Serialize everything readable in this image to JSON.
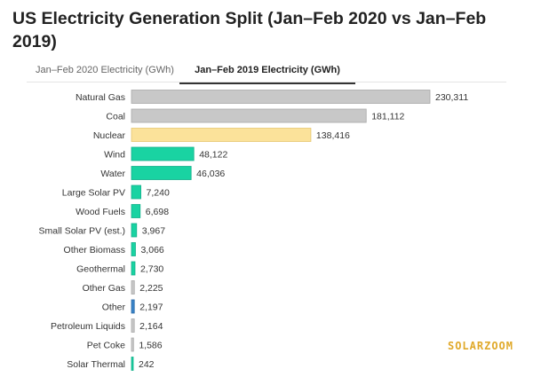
{
  "title": "US Electricity Generation Split (Jan–Feb 2020 vs Jan–Feb 2019)",
  "tabs": [
    {
      "label": "Jan–Feb 2020 Electricity (GWh)",
      "active": false
    },
    {
      "label": "Jan–Feb 2019 Electricity (GWh)",
      "active": true
    }
  ],
  "watermark": "SOLARZOOM",
  "chart_data": {
    "type": "bar",
    "orientation": "horizontal",
    "title": "US Electricity Generation Split (Jan–Feb 2020 vs Jan–Feb 2019)",
    "xlabel": "",
    "ylabel": "",
    "xlim": [
      0,
      230311
    ],
    "grid": false,
    "categories": [
      "Natural Gas",
      "Coal",
      "Nuclear",
      "Wind",
      "Water",
      "Large Solar PV",
      "Wood Fuels",
      "Small Solar PV (est.)",
      "Other Biomass",
      "Geothermal",
      "Other Gas",
      "Other",
      "Petroleum Liquids",
      "Pet Coke",
      "Solar Thermal"
    ],
    "values": [
      230311,
      181112,
      138416,
      48122,
      46036,
      7240,
      6698,
      3967,
      3066,
      2730,
      2225,
      2197,
      2164,
      1586,
      242
    ],
    "value_labels": [
      "230,311",
      "181,112",
      "138,416",
      "48,122",
      "46,036",
      "7,240",
      "6,698",
      "3,967",
      "3,066",
      "2,730",
      "2,225",
      "2,197",
      "2,164",
      "1,586",
      "242"
    ],
    "colors": [
      "#c8c8c8",
      "#c8c8c8",
      "#fbe29a",
      "#19d3a2",
      "#19d3a2",
      "#19d3a2",
      "#19d3a2",
      "#19d3a2",
      "#19d3a2",
      "#19d3a2",
      "#c8c8c8",
      "#3a84c8",
      "#c8c8c8",
      "#c8c8c8",
      "#19d3a2"
    ],
    "stroke_colors": [
      "#a8a8a8",
      "#a8a8a8",
      "#e6c670",
      "#12b08a",
      "#12b08a",
      "#12b08a",
      "#12b08a",
      "#12b08a",
      "#12b08a",
      "#12b08a",
      "#a8a8a8",
      "#2a6aa8",
      "#a8a8a8",
      "#a8a8a8",
      "#12b08a"
    ]
  }
}
